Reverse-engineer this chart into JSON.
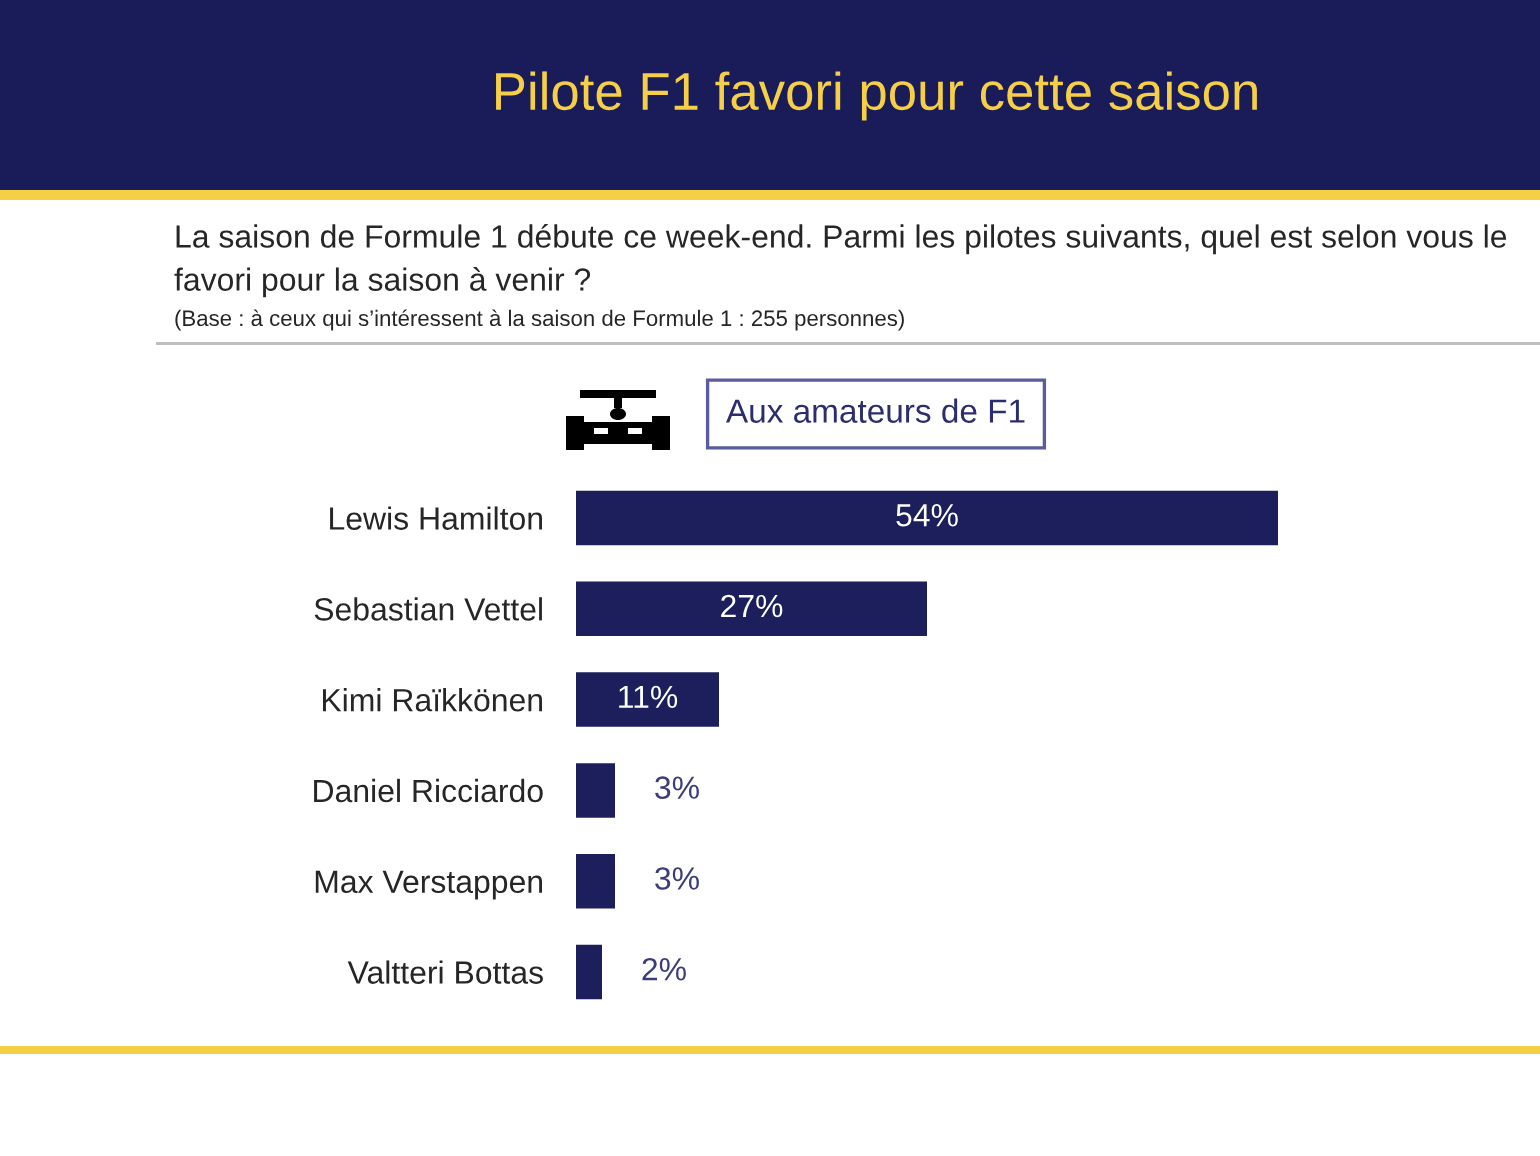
{
  "chart_data": {
    "type": "bar",
    "orientation": "horizontal",
    "title": "Pilote F1 favori pour cette saison",
    "subtitle": "La saison de Formule 1 débute ce week-end. Parmi les pilotes suivants, quel est selon vous le favori pour la saison à venir ?",
    "annotations": [
      "(Base : à ceux qui s’intéressent à la saison de Formule 1 : 255 personnes)",
      "Aux amateurs de F1"
    ],
    "categories": [
      "Lewis Hamilton",
      "Sebastian Vettel",
      "Kimi Raïkkönen",
      "Daniel Ricciardo",
      "Max Verstappen",
      "Valtteri Bottas"
    ],
    "values": [
      54,
      27,
      11,
      3,
      3,
      2
    ],
    "color": "#1c1f5c",
    "value_labels": [
      "54%",
      "27%",
      "11%",
      "3%",
      "3%",
      "2%"
    ]
  }
}
